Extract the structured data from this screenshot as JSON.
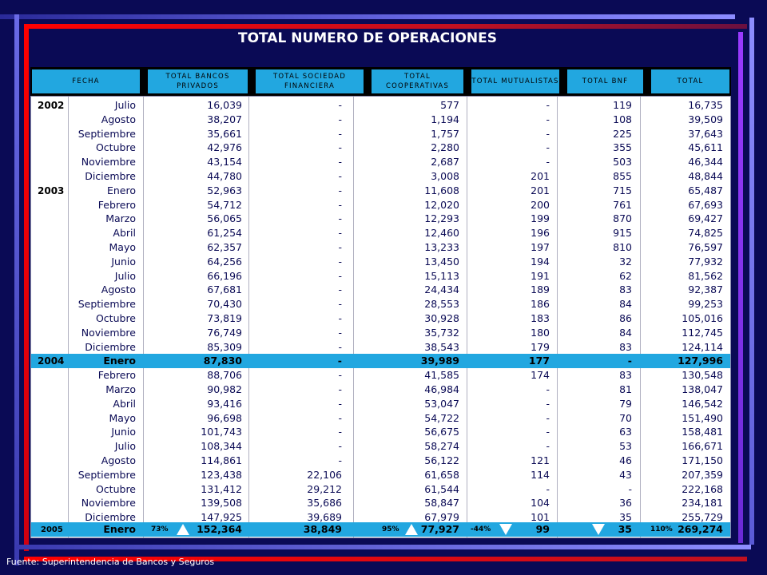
{
  "title": "TOTAL NUMERO DE OPERACIONES",
  "source": "Fuente: Superintendencia de Bancos y Seguros",
  "colors": {
    "background": "#0a0a55",
    "header": "#22a7e0",
    "highlight": "#22a7e0",
    "accent_red": "#ff0000"
  },
  "headers": {
    "fecha": "FECHA",
    "bancos": "TOTAL BANCOS PRIVADOS",
    "sociedad": "TOTAL SOCIEDAD FINANCIERA",
    "coop": "TOTAL COOPERATIVAS",
    "mutual": "TOTAL MUTUALISTAS",
    "bnf": "TOTAL BNF",
    "total": "TOTAL"
  },
  "rows": [
    {
      "year": "2002",
      "month": "Julio",
      "bancos": "16,039",
      "sociedad": "-",
      "coop": "577",
      "mutual": "-",
      "bnf": "119",
      "total": "16,735"
    },
    {
      "year": "",
      "month": "Agosto",
      "bancos": "38,207",
      "sociedad": "-",
      "coop": "1,194",
      "mutual": "-",
      "bnf": "108",
      "total": "39,509"
    },
    {
      "year": "",
      "month": "Septiembre",
      "bancos": "35,661",
      "sociedad": "-",
      "coop": "1,757",
      "mutual": "-",
      "bnf": "225",
      "total": "37,643"
    },
    {
      "year": "",
      "month": "Octubre",
      "bancos": "42,976",
      "sociedad": "-",
      "coop": "2,280",
      "mutual": "-",
      "bnf": "355",
      "total": "45,611"
    },
    {
      "year": "",
      "month": "Noviembre",
      "bancos": "43,154",
      "sociedad": "-",
      "coop": "2,687",
      "mutual": "-",
      "bnf": "503",
      "total": "46,344"
    },
    {
      "year": "",
      "month": "Diciembre",
      "bancos": "44,780",
      "sociedad": "-",
      "coop": "3,008",
      "mutual": "201",
      "bnf": "855",
      "total": "48,844"
    },
    {
      "year": "2003",
      "month": "Enero",
      "bancos": "52,963",
      "sociedad": "-",
      "coop": "11,608",
      "mutual": "201",
      "bnf": "715",
      "total": "65,487"
    },
    {
      "year": "",
      "month": "Febrero",
      "bancos": "54,712",
      "sociedad": "-",
      "coop": "12,020",
      "mutual": "200",
      "bnf": "761",
      "total": "67,693"
    },
    {
      "year": "",
      "month": "Marzo",
      "bancos": "56,065",
      "sociedad": "-",
      "coop": "12,293",
      "mutual": "199",
      "bnf": "870",
      "total": "69,427"
    },
    {
      "year": "",
      "month": "Abril",
      "bancos": "61,254",
      "sociedad": "-",
      "coop": "12,460",
      "mutual": "196",
      "bnf": "915",
      "total": "74,825"
    },
    {
      "year": "",
      "month": "Mayo",
      "bancos": "62,357",
      "sociedad": "-",
      "coop": "13,233",
      "mutual": "197",
      "bnf": "810",
      "total": "76,597"
    },
    {
      "year": "",
      "month": "Junio",
      "bancos": "64,256",
      "sociedad": "-",
      "coop": "13,450",
      "mutual": "194",
      "bnf": "32",
      "total": "77,932"
    },
    {
      "year": "",
      "month": "Julio",
      "bancos": "66,196",
      "sociedad": "-",
      "coop": "15,113",
      "mutual": "191",
      "bnf": "62",
      "total": "81,562"
    },
    {
      "year": "",
      "month": "Agosto",
      "bancos": "67,681",
      "sociedad": "-",
      "coop": "24,434",
      "mutual": "189",
      "bnf": "83",
      "total": "92,387"
    },
    {
      "year": "",
      "month": "Septiembre",
      "bancos": "70,430",
      "sociedad": "-",
      "coop": "28,553",
      "mutual": "186",
      "bnf": "84",
      "total": "99,253"
    },
    {
      "year": "",
      "month": "Octubre",
      "bancos": "73,819",
      "sociedad": "-",
      "coop": "30,928",
      "mutual": "183",
      "bnf": "86",
      "total": "105,016"
    },
    {
      "year": "",
      "month": "Noviembre",
      "bancos": "76,749",
      "sociedad": "-",
      "coop": "35,732",
      "mutual": "180",
      "bnf": "84",
      "total": "112,745"
    },
    {
      "year": "",
      "month": "Diciembre",
      "bancos": "85,309",
      "sociedad": "-",
      "coop": "38,543",
      "mutual": "179",
      "bnf": "83",
      "total": "124,114"
    },
    {
      "year": "2004",
      "month": "Enero",
      "bancos": "87,830",
      "sociedad": "-",
      "coop": "39,989",
      "mutual": "177",
      "bnf": "-",
      "total": "127,996",
      "highlight": true
    },
    {
      "year": "",
      "month": "Febrero",
      "bancos": "88,706",
      "sociedad": "-",
      "coop": "41,585",
      "mutual": "174",
      "bnf": "83",
      "total": "130,548"
    },
    {
      "year": "",
      "month": "Marzo",
      "bancos": "90,982",
      "sociedad": "-",
      "coop": "46,984",
      "mutual": "-",
      "bnf": "81",
      "total": "138,047"
    },
    {
      "year": "",
      "month": "Abril",
      "bancos": "93,416",
      "sociedad": "-",
      "coop": "53,047",
      "mutual": "-",
      "bnf": "79",
      "total": "146,542"
    },
    {
      "year": "",
      "month": "Mayo",
      "bancos": "96,698",
      "sociedad": "-",
      "coop": "54,722",
      "mutual": "-",
      "bnf": "70",
      "total": "151,490"
    },
    {
      "year": "",
      "month": "Junio",
      "bancos": "101,743",
      "sociedad": "-",
      "coop": "56,675",
      "mutual": "-",
      "bnf": "63",
      "total": "158,481"
    },
    {
      "year": "",
      "month": "Julio",
      "bancos": "108,344",
      "sociedad": "-",
      "coop": "58,274",
      "mutual": "-",
      "bnf": "53",
      "total": "166,671"
    },
    {
      "year": "",
      "month": "Agosto",
      "bancos": "114,861",
      "sociedad": "-",
      "coop": "56,122",
      "mutual": "121",
      "bnf": "46",
      "total": "171,150"
    },
    {
      "year": "",
      "month": "Septiembre",
      "bancos": "123,438",
      "sociedad": "22,106",
      "coop": "61,658",
      "mutual": "114",
      "bnf": "43",
      "total": "207,359"
    },
    {
      "year": "",
      "month": "Octubre",
      "bancos": "131,412",
      "sociedad": "29,212",
      "coop": "61,544",
      "mutual": "-",
      "bnf": "-",
      "total": "222,168"
    },
    {
      "year": "",
      "month": "Noviembre",
      "bancos": "139,508",
      "sociedad": "35,686",
      "coop": "58,847",
      "mutual": "104",
      "bnf": "36",
      "total": "234,181"
    },
    {
      "year": "",
      "month": "Diciembre",
      "bancos": "147,925",
      "sociedad": "39,689",
      "coop": "67,979",
      "mutual": "101",
      "bnf": "35",
      "total": "255,729"
    }
  ],
  "last_row": {
    "year": "2005",
    "month": "Enero",
    "bancos": "152,364",
    "bancos_pct": "73%",
    "sociedad": "38,849",
    "coop": "77,927",
    "coop_pct": "95%",
    "mutual": "99",
    "mutual_pct": "-44%",
    "bnf": "35",
    "total": "269,274",
    "total_pct": "110%"
  }
}
